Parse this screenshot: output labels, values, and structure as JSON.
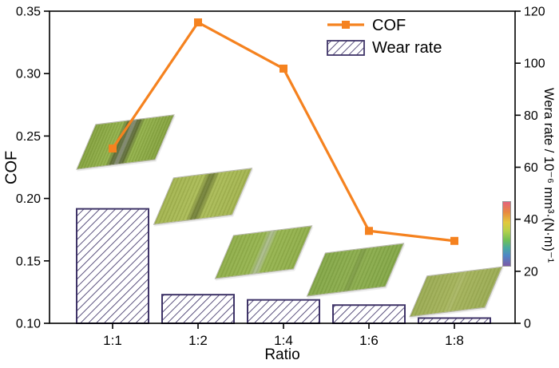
{
  "chart_data": {
    "type": "combo-bar-line",
    "categories": [
      "1:1",
      "1:2",
      "1:4",
      "1:6",
      "1:8"
    ],
    "series": [
      {
        "name": "COF",
        "type": "line",
        "axis": "left",
        "color": "#F5821F",
        "marker": "square",
        "values": [
          0.24,
          0.341,
          0.304,
          0.174,
          0.166
        ]
      },
      {
        "name": "Wear rate",
        "type": "bar",
        "axis": "right",
        "color": "#3F3468",
        "fill": "diagonal-hatch",
        "values": [
          44,
          11,
          9,
          7,
          2
        ]
      }
    ],
    "left_axis": {
      "label": "COF",
      "min": 0.1,
      "max": 0.35,
      "tick_values": [
        0.35,
        0.3,
        0.25,
        0.2,
        0.15,
        0.1
      ],
      "ticks": [
        "0.35",
        "0.30",
        "0.25",
        "0.20",
        "0.15",
        "0.10"
      ]
    },
    "right_axis": {
      "label": "Wera rate / 10⁻⁶ mm³·(N·m)⁻¹",
      "min": 0,
      "max": 120,
      "tick_values": [
        120,
        100,
        80,
        60,
        40,
        20,
        0
      ],
      "ticks": [
        "120",
        "100",
        "80",
        "60",
        "40",
        "20",
        "0"
      ]
    },
    "x_axis": {
      "label": "Ratio"
    },
    "legend": {
      "position": "top-right",
      "items": [
        {
          "label": "COF",
          "swatch": "orange-line-with-square-marker"
        },
        {
          "label": "Wear rate",
          "swatch": "hatched-box"
        }
      ]
    },
    "grid": false,
    "insets": [
      {
        "name": "wear-surface-3d-topography",
        "category": "1:1"
      },
      {
        "name": "wear-surface-3d-topography",
        "category": "1:2"
      },
      {
        "name": "wear-surface-3d-topography",
        "category": "1:4"
      },
      {
        "name": "wear-surface-3d-topography",
        "category": "1:6"
      },
      {
        "name": "wear-surface-3d-topography",
        "category": "1:8"
      }
    ]
  }
}
